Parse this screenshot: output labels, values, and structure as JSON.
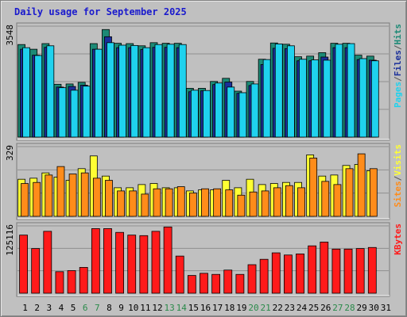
{
  "chart_data": {
    "title": "Daily usage for September 2025",
    "type": "bar",
    "colors": {
      "hits": "#1c8a76",
      "files": "#1a2f9a",
      "pages": "#1fd2ee",
      "visits": "#ffff33",
      "sites": "#ff8c1a",
      "kbytes": "#ff1a1a",
      "weekend_day": "#2a8a4a",
      "weekday": "#000000",
      "grid": "#8f8f8f",
      "panel": "#c0c0c0"
    },
    "days": [
      "1",
      "2",
      "3",
      "4",
      "5",
      "6",
      "7",
      "8",
      "9",
      "10",
      "11",
      "12",
      "13",
      "14",
      "15",
      "16",
      "17",
      "18",
      "19",
      "20",
      "21",
      "22",
      "23",
      "24",
      "25",
      "26",
      "27",
      "28",
      "29",
      "30",
      "31"
    ],
    "weekend_days": [
      6,
      7,
      13,
      14,
      20,
      21,
      27,
      28
    ],
    "panels": [
      {
        "id": "top",
        "ymax_label": "3548",
        "legend": [
          {
            "text": "Pages",
            "color": "#1fd2ee"
          },
          {
            "text": "/",
            "color": "#555555"
          },
          {
            "text": "Files",
            "color": "#1a2f9a"
          },
          {
            "text": "/",
            "color": "#555555"
          },
          {
            "text": "Hits",
            "color": "#1c8a76"
          }
        ],
        "ymax": 3548,
        "series": [
          {
            "name": "Hits",
            "values": [
              2960,
              2810,
              2990,
              1690,
              1700,
              1750,
              2990,
              3440,
              3000,
              2990,
              2920,
              3020,
              3000,
              3000,
              1560,
              1560,
              1780,
              1880,
              1470,
              1780,
              2490,
              3010,
              2970,
              2570,
              2590,
              2700,
              3000,
              3000,
              2620,
              2590,
              null
            ]
          },
          {
            "name": "Files",
            "values": [
              2810,
              2620,
              2870,
              1600,
              1620,
              1660,
              2810,
              3210,
              2860,
              2860,
              2800,
              2870,
              2870,
              2860,
              1450,
              1480,
              1680,
              1760,
              1400,
              1650,
              2320,
              2840,
              2830,
              2440,
              2440,
              2560,
              2860,
              2860,
              2480,
              2460,
              null
            ]
          },
          {
            "name": "Pages",
            "values": [
              2860,
              2610,
              2920,
              1580,
              1500,
              1630,
              2810,
              3020,
              2940,
              2930,
              2860,
              2960,
              2970,
              2960,
              1500,
              1490,
              1730,
              1600,
              1420,
              1700,
              2480,
              2980,
              2920,
              2490,
              2470,
              2460,
              2970,
              2990,
              2510,
              2440,
              null
            ]
          }
        ]
      },
      {
        "id": "middle",
        "ymax_label": "329",
        "legend": [
          {
            "text": "Sites",
            "color": "#ff8c1a"
          },
          {
            "text": "/",
            "color": "#555555"
          },
          {
            "text": "Visits",
            "color": "#ffff33"
          }
        ],
        "ymax": 329,
        "series": [
          {
            "name": "Visits",
            "values": [
              175,
              180,
              205,
              185,
              170,
              225,
              285,
              190,
              135,
              135,
              150,
              155,
              135,
              135,
              120,
              125,
              125,
              170,
              135,
              175,
              150,
              155,
              160,
              160,
              290,
              190,
              195,
              240,
              245,
              215,
              null
            ]
          },
          {
            "name": "Sites",
            "values": [
              155,
              160,
              195,
              235,
              200,
              205,
              180,
              170,
              120,
              120,
              105,
              130,
              130,
              140,
              110,
              130,
              130,
              125,
              100,
              115,
              120,
              135,
              145,
              135,
              275,
              165,
              150,
              225,
              295,
              225,
              null
            ]
          }
        ]
      },
      {
        "id": "bottom",
        "ymax_label": "125116",
        "legend": [
          {
            "text": "KBytes",
            "color": "#ff1a1a"
          }
        ],
        "ymax": 125116,
        "series": [
          {
            "name": "KBytes",
            "values": [
              108000,
              83000,
              115000,
              40000,
              42000,
              48000,
              120000,
              120000,
              113000,
              108000,
              107000,
              115000,
              123000,
              69000,
              33000,
              37000,
              35000,
              43000,
              35000,
              53000,
              63000,
              75000,
              71000,
              73000,
              88000,
              95000,
              82000,
              82000,
              83000,
              85000,
              null
            ]
          }
        ]
      }
    ]
  }
}
